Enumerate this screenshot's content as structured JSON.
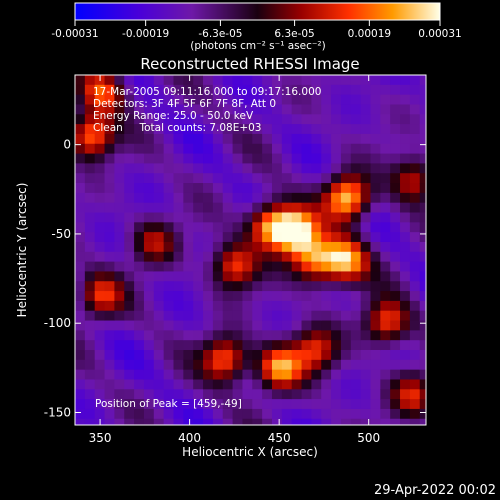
{
  "chart_data": {
    "type": "heatmap",
    "title": "Reconstructed RHESSI Image",
    "xlabel": "Heliocentric X (arcsec)",
    "ylabel": "Heliocentric Y (arcsec)",
    "xlim": [
      336,
      532
    ],
    "ylim": [
      -157,
      39
    ],
    "xticks": [
      350,
      400,
      450,
      500
    ],
    "yticks": [
      0,
      -50,
      -100,
      -150
    ],
    "colorbar": {
      "ticks": [
        -0.00031,
        -0.00019,
        -6.3e-05,
        6.3e-05,
        0.00019,
        0.00031
      ],
      "tick_labels": [
        "-0.00031",
        "-0.00019",
        "-6.3e-05",
        "6.3e-05",
        "0.00019",
        "0.00031"
      ],
      "unit_label": "(photons cm⁻² s⁻¹ asec⁻²)",
      "range": [
        -0.00031,
        0.00031
      ]
    },
    "annotations": {
      "time_range": "17-Mar-2005 09:11:16.000 to 09:17:16.000",
      "detectors": "Detectors: 3F 4F 5F 6F 7F 8F, Att 0",
      "energy": "Energy Range: 25.0 - 50.0 keV",
      "method": "Clean     Total counts: 7.08E+03",
      "peak": "Position of Peak = [459,-49]"
    },
    "sources": [
      {
        "x": 459,
        "y": -49,
        "value": 0.00031
      },
      {
        "x": 488,
        "y": -30,
        "value": 0.00029
      },
      {
        "x": 487,
        "y": -65,
        "value": 0.00024
      },
      {
        "x": 470,
        "y": -65,
        "value": 0.0002
      },
      {
        "x": 445,
        "y": -45,
        "value": 0.00022
      },
      {
        "x": 425,
        "y": -68,
        "value": 0.00016
      },
      {
        "x": 420,
        "y": -120,
        "value": 0.0002
      },
      {
        "x": 450,
        "y": -125,
        "value": 0.00023
      },
      {
        "x": 470,
        "y": -115,
        "value": 0.00012
      },
      {
        "x": 510,
        "y": -100,
        "value": 0.00018
      },
      {
        "x": 345,
        "y": 5,
        "value": 0.00022
      },
      {
        "x": 352,
        "y": 30,
        "value": 0.00016
      },
      {
        "x": 350,
        "y": -85,
        "value": 0.00013
      },
      {
        "x": 525,
        "y": -20,
        "value": 0.00012
      },
      {
        "x": 525,
        "y": -140,
        "value": 0.00011
      },
      {
        "x": 380,
        "y": -55,
        "value": 8e-05
      }
    ]
  },
  "footer": {
    "timestamp": "29-Apr-2022 00:02"
  }
}
